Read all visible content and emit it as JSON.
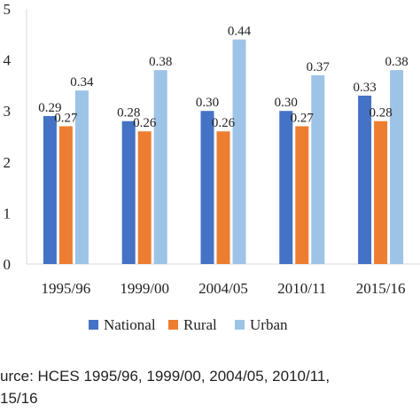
{
  "chart_data": {
    "type": "bar",
    "categories": [
      "1995/96",
      "1999/00",
      "2004/05",
      "2010/11",
      "2015/16"
    ],
    "y_tick_labels": [
      "0",
      "1",
      "2",
      "3",
      "4",
      "5"
    ],
    "ylim": [
      0,
      0.5
    ],
    "grid": false,
    "legend_position": "bottom",
    "series": [
      {
        "name": "National",
        "color": "#4472C4",
        "values": [
          0.29,
          0.28,
          0.3,
          0.3,
          0.33
        ],
        "labels": [
          "0.29",
          "0.28",
          "0.30",
          "0.30",
          "0.33"
        ]
      },
      {
        "name": "Rural",
        "color": "#ED7D31",
        "values": [
          0.27,
          0.26,
          0.26,
          0.27,
          0.28
        ],
        "labels": [
          "0.27",
          "0.26",
          "0.26",
          "0.27",
          "0.28"
        ]
      },
      {
        "name": "Urban",
        "color": "#9DC3E6",
        "values": [
          0.34,
          0.38,
          0.44,
          0.37,
          0.38
        ],
        "labels": [
          "0.34",
          "0.38",
          "0.44",
          "0.37",
          "0.38"
        ]
      }
    ]
  },
  "source_text": "urce: HCES 1995/96, 1999/00, 2004/05, 2010/11,\n15/16"
}
